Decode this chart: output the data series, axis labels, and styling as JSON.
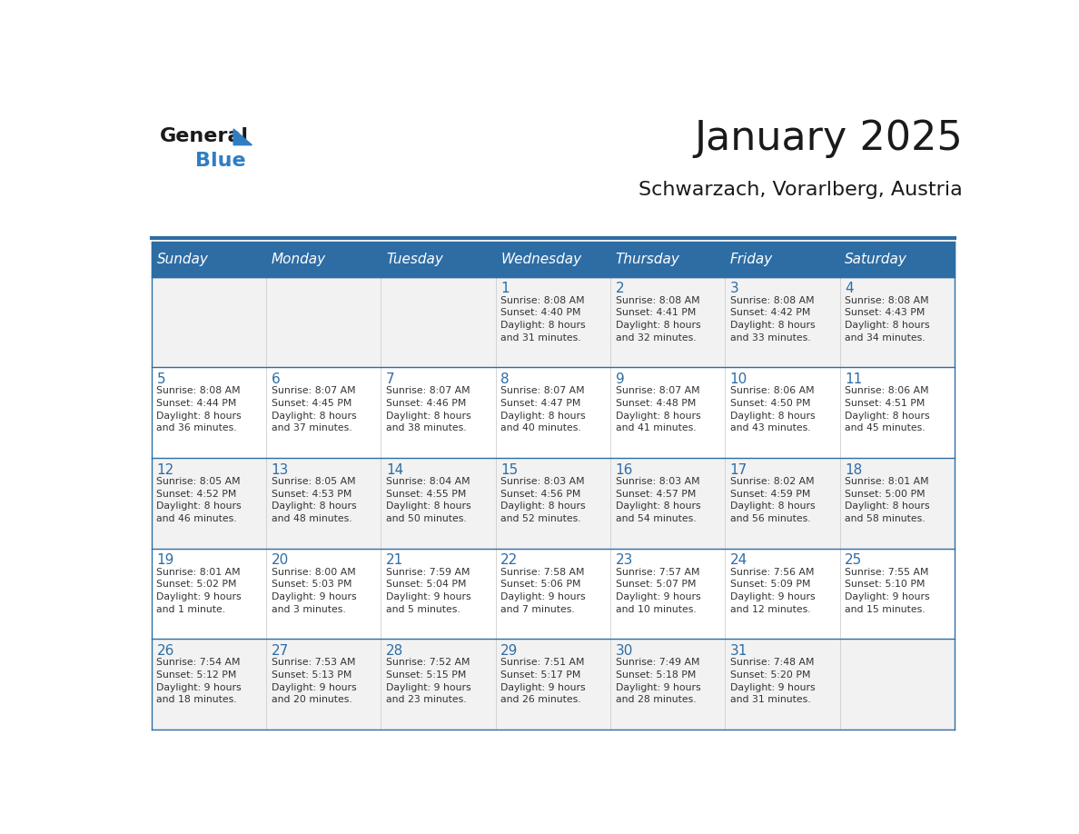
{
  "title": "January 2025",
  "subtitle": "Schwarzach, Vorarlberg, Austria",
  "days_of_week": [
    "Sunday",
    "Monday",
    "Tuesday",
    "Wednesday",
    "Thursday",
    "Friday",
    "Saturday"
  ],
  "header_bg": "#2E6DA4",
  "header_text_color": "#FFFFFF",
  "row_bg_odd": "#F2F2F2",
  "row_bg_even": "#FFFFFF",
  "cell_border_color": "#2E6DA4",
  "text_color": "#333333",
  "logo_general_color": "#1a1a1a",
  "logo_blue_color": "#2E7EC4",
  "calendar_data": [
    [
      {
        "day": "",
        "info": ""
      },
      {
        "day": "",
        "info": ""
      },
      {
        "day": "",
        "info": ""
      },
      {
        "day": "1",
        "info": "Sunrise: 8:08 AM\nSunset: 4:40 PM\nDaylight: 8 hours\nand 31 minutes."
      },
      {
        "day": "2",
        "info": "Sunrise: 8:08 AM\nSunset: 4:41 PM\nDaylight: 8 hours\nand 32 minutes."
      },
      {
        "day": "3",
        "info": "Sunrise: 8:08 AM\nSunset: 4:42 PM\nDaylight: 8 hours\nand 33 minutes."
      },
      {
        "day": "4",
        "info": "Sunrise: 8:08 AM\nSunset: 4:43 PM\nDaylight: 8 hours\nand 34 minutes."
      }
    ],
    [
      {
        "day": "5",
        "info": "Sunrise: 8:08 AM\nSunset: 4:44 PM\nDaylight: 8 hours\nand 36 minutes."
      },
      {
        "day": "6",
        "info": "Sunrise: 8:07 AM\nSunset: 4:45 PM\nDaylight: 8 hours\nand 37 minutes."
      },
      {
        "day": "7",
        "info": "Sunrise: 8:07 AM\nSunset: 4:46 PM\nDaylight: 8 hours\nand 38 minutes."
      },
      {
        "day": "8",
        "info": "Sunrise: 8:07 AM\nSunset: 4:47 PM\nDaylight: 8 hours\nand 40 minutes."
      },
      {
        "day": "9",
        "info": "Sunrise: 8:07 AM\nSunset: 4:48 PM\nDaylight: 8 hours\nand 41 minutes."
      },
      {
        "day": "10",
        "info": "Sunrise: 8:06 AM\nSunset: 4:50 PM\nDaylight: 8 hours\nand 43 minutes."
      },
      {
        "day": "11",
        "info": "Sunrise: 8:06 AM\nSunset: 4:51 PM\nDaylight: 8 hours\nand 45 minutes."
      }
    ],
    [
      {
        "day": "12",
        "info": "Sunrise: 8:05 AM\nSunset: 4:52 PM\nDaylight: 8 hours\nand 46 minutes."
      },
      {
        "day": "13",
        "info": "Sunrise: 8:05 AM\nSunset: 4:53 PM\nDaylight: 8 hours\nand 48 minutes."
      },
      {
        "day": "14",
        "info": "Sunrise: 8:04 AM\nSunset: 4:55 PM\nDaylight: 8 hours\nand 50 minutes."
      },
      {
        "day": "15",
        "info": "Sunrise: 8:03 AM\nSunset: 4:56 PM\nDaylight: 8 hours\nand 52 minutes."
      },
      {
        "day": "16",
        "info": "Sunrise: 8:03 AM\nSunset: 4:57 PM\nDaylight: 8 hours\nand 54 minutes."
      },
      {
        "day": "17",
        "info": "Sunrise: 8:02 AM\nSunset: 4:59 PM\nDaylight: 8 hours\nand 56 minutes."
      },
      {
        "day": "18",
        "info": "Sunrise: 8:01 AM\nSunset: 5:00 PM\nDaylight: 8 hours\nand 58 minutes."
      }
    ],
    [
      {
        "day": "19",
        "info": "Sunrise: 8:01 AM\nSunset: 5:02 PM\nDaylight: 9 hours\nand 1 minute."
      },
      {
        "day": "20",
        "info": "Sunrise: 8:00 AM\nSunset: 5:03 PM\nDaylight: 9 hours\nand 3 minutes."
      },
      {
        "day": "21",
        "info": "Sunrise: 7:59 AM\nSunset: 5:04 PM\nDaylight: 9 hours\nand 5 minutes."
      },
      {
        "day": "22",
        "info": "Sunrise: 7:58 AM\nSunset: 5:06 PM\nDaylight: 9 hours\nand 7 minutes."
      },
      {
        "day": "23",
        "info": "Sunrise: 7:57 AM\nSunset: 5:07 PM\nDaylight: 9 hours\nand 10 minutes."
      },
      {
        "day": "24",
        "info": "Sunrise: 7:56 AM\nSunset: 5:09 PM\nDaylight: 9 hours\nand 12 minutes."
      },
      {
        "day": "25",
        "info": "Sunrise: 7:55 AM\nSunset: 5:10 PM\nDaylight: 9 hours\nand 15 minutes."
      }
    ],
    [
      {
        "day": "26",
        "info": "Sunrise: 7:54 AM\nSunset: 5:12 PM\nDaylight: 9 hours\nand 18 minutes."
      },
      {
        "day": "27",
        "info": "Sunrise: 7:53 AM\nSunset: 5:13 PM\nDaylight: 9 hours\nand 20 minutes."
      },
      {
        "day": "28",
        "info": "Sunrise: 7:52 AM\nSunset: 5:15 PM\nDaylight: 9 hours\nand 23 minutes."
      },
      {
        "day": "29",
        "info": "Sunrise: 7:51 AM\nSunset: 5:17 PM\nDaylight: 9 hours\nand 26 minutes."
      },
      {
        "day": "30",
        "info": "Sunrise: 7:49 AM\nSunset: 5:18 PM\nDaylight: 9 hours\nand 28 minutes."
      },
      {
        "day": "31",
        "info": "Sunrise: 7:48 AM\nSunset: 5:20 PM\nDaylight: 9 hours\nand 31 minutes."
      },
      {
        "day": "",
        "info": ""
      }
    ]
  ]
}
